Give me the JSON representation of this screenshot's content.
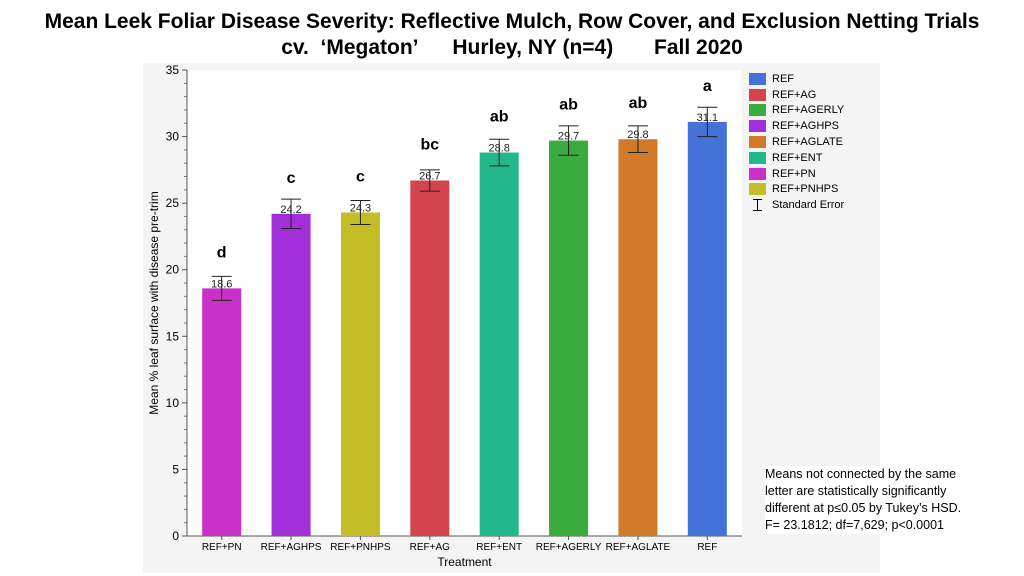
{
  "title_line1": "Mean Leek Foliar Disease Severity: Reflective Mulch, Row Cover, and Exclusion Netting Trials",
  "title_line2": "cv.  ‘Megaton’      Hurley, NY (n=4)       Fall 2020",
  "note": [
    "Means not connected by the same",
    "letter are statistically significantly",
    "different at p≤0.05 by Tukey’s HSD.",
    "F= 23.1812; df=7,629; p<0.0001"
  ],
  "legend": {
    "items": [
      {
        "label": "REF",
        "color": "#4472d8"
      },
      {
        "label": "REF+AG",
        "color": "#d4444f"
      },
      {
        "label": "REF+AGERLY",
        "color": "#3aab3f"
      },
      {
        "label": "REF+AGHPS",
        "color": "#a22fd9"
      },
      {
        "label": "REF+AGLATE",
        "color": "#d17a2a"
      },
      {
        "label": "REF+ENT",
        "color": "#22b88c"
      },
      {
        "label": "REF+PN",
        "color": "#c931c9"
      },
      {
        "label": "REF+PNHPS",
        "color": "#c5bd27"
      }
    ],
    "error_label": "Standard Error"
  },
  "chart_data": {
    "type": "bar",
    "title": "",
    "xlabel": "Treatment",
    "ylabel": "Mean % leaf surface with disease pre-trim",
    "ylim": [
      0,
      35
    ],
    "yticks": [
      0,
      5,
      10,
      15,
      20,
      25,
      30,
      35
    ],
    "grid": false,
    "legend_position": "right",
    "categories": [
      "REF+PN",
      "REF+AGHPS",
      "REF+PNHPS",
      "REF+AG",
      "REF+ENT",
      "REF+AGERLY",
      "REF+AGLATE",
      "REF"
    ],
    "values": [
      18.6,
      24.2,
      24.3,
      26.7,
      28.8,
      29.7,
      29.8,
      31.1
    ],
    "value_labels": [
      "18.6",
      "24.2",
      "24.3",
      "26.7",
      "28.8",
      "29.7",
      "29.8",
      "31.1"
    ],
    "std_error": [
      0.9,
      1.1,
      0.9,
      0.8,
      1.0,
      1.1,
      1.0,
      1.1
    ],
    "letters": [
      "d",
      "c",
      "c",
      "bc",
      "ab",
      "ab",
      "ab",
      "a"
    ],
    "colors": [
      "#c931c9",
      "#a22fd9",
      "#c5bd27",
      "#d4444f",
      "#22b88c",
      "#3aab3f",
      "#d17a2a",
      "#4472d8"
    ]
  }
}
